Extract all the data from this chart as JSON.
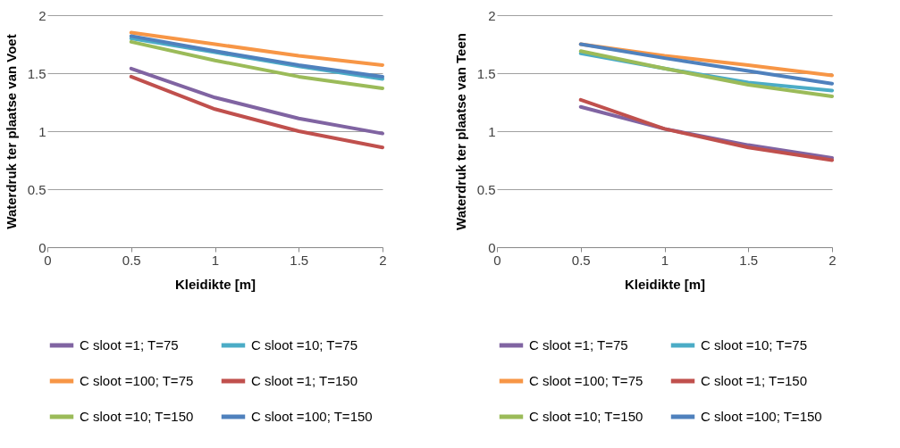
{
  "chart_data": [
    {
      "type": "line",
      "xlabel": "Kleidikte [m]",
      "ylabel": "Waterdruk ter plaatse van Voet",
      "x": [
        0.5,
        1,
        1.5,
        2
      ],
      "xlim": [
        0,
        2
      ],
      "xticks": [
        0,
        0.5,
        1,
        1.5,
        2
      ],
      "ylim": [
        0,
        2
      ],
      "yticks": [
        0,
        0.5,
        1,
        1.5,
        2
      ],
      "grid": "y",
      "legend": "bottom",
      "marker": "none",
      "line_style": "solid",
      "series": [
        {
          "name": "C sloot =1; T=75",
          "color": "#8064a2",
          "values": [
            1.54,
            1.29,
            1.11,
            0.98
          ]
        },
        {
          "name": "C sloot =10; T=75",
          "color": "#4bacc6",
          "values": [
            1.8,
            1.68,
            1.56,
            1.45
          ]
        },
        {
          "name": "C sloot =100; T=75",
          "color": "#f79646",
          "values": [
            1.85,
            1.75,
            1.65,
            1.57
          ]
        },
        {
          "name": "C sloot =1; T=150",
          "color": "#c0504d",
          "values": [
            1.47,
            1.19,
            1.0,
            0.86
          ]
        },
        {
          "name": "C sloot =10; T=150",
          "color": "#9bbb59",
          "values": [
            1.77,
            1.61,
            1.47,
            1.37
          ]
        },
        {
          "name": "C sloot =100; T=150",
          "color": "#4f81bd",
          "values": [
            1.82,
            1.69,
            1.57,
            1.47
          ]
        }
      ]
    },
    {
      "type": "line",
      "xlabel": "Kleidikte [m]",
      "ylabel": "Waterdruk ter plaatse van Teen",
      "x": [
        0.5,
        1,
        1.5,
        2
      ],
      "xlim": [
        0,
        2
      ],
      "xticks": [
        0,
        0.5,
        1,
        1.5,
        2
      ],
      "ylim": [
        0,
        2
      ],
      "yticks": [
        0,
        0.5,
        1,
        1.5,
        2
      ],
      "grid": "y",
      "legend": "bottom",
      "marker": "none",
      "line_style": "solid",
      "series": [
        {
          "name": "C sloot =1; T=75",
          "color": "#8064a2",
          "values": [
            1.21,
            1.02,
            0.88,
            0.77
          ]
        },
        {
          "name": "C sloot =10; T=75",
          "color": "#4bacc6",
          "values": [
            1.67,
            1.54,
            1.42,
            1.35
          ]
        },
        {
          "name": "C sloot =100; T=75",
          "color": "#f79646",
          "values": [
            1.75,
            1.65,
            1.57,
            1.48
          ]
        },
        {
          "name": "C sloot =1; T=150",
          "color": "#c0504d",
          "values": [
            1.27,
            1.02,
            0.86,
            0.75
          ]
        },
        {
          "name": "C sloot =10; T=150",
          "color": "#9bbb59",
          "values": [
            1.69,
            1.54,
            1.4,
            1.3
          ]
        },
        {
          "name": "C sloot =100; T=150",
          "color": "#4f81bd",
          "values": [
            1.75,
            1.63,
            1.52,
            1.41
          ]
        }
      ]
    }
  ]
}
